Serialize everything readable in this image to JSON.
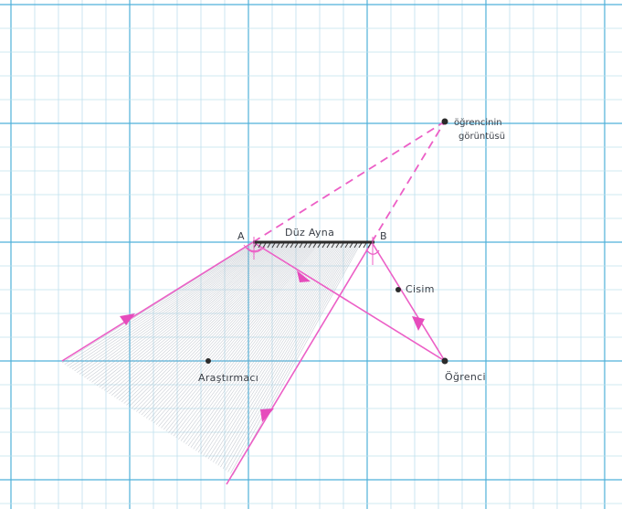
{
  "labels": {
    "point_a": "A",
    "point_b": "B",
    "mirror": "Düz Ayna",
    "image": "öğrencinin",
    "image_line2": "görüntüsü",
    "object": "Cisim",
    "student": "Öğrenci",
    "researcher": "Araştırmacı"
  },
  "colors": {
    "grid_minor": "#bfe0ee",
    "grid_major": "#4fb0d9",
    "ray": "#ec5fc6",
    "arrow": "#e64cbc",
    "mirror": "#2c2c2c",
    "shading": "#9ea6b2"
  }
}
